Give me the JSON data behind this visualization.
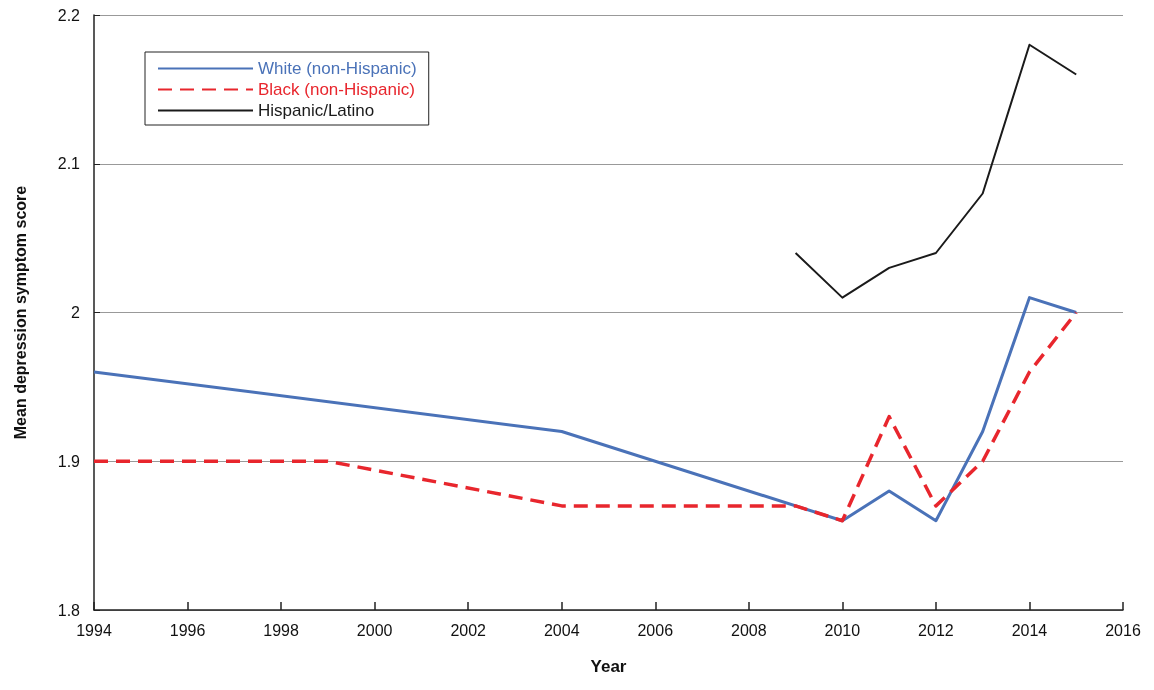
{
  "chart_data": {
    "type": "line",
    "xlabel": "Year",
    "ylabel": "Mean depression symptom score",
    "xlim": [
      1994,
      2016
    ],
    "xticks": [
      1994,
      1996,
      1998,
      2000,
      2002,
      2004,
      2006,
      2008,
      2010,
      2012,
      2014,
      2016
    ],
    "ylim": [
      1.8,
      2.2
    ],
    "yticks": [
      1.8,
      1.9,
      2.0,
      2.1,
      2.2
    ],
    "grid": "y",
    "legend": "top left",
    "marker": "none",
    "series": [
      {
        "name": "White (non-Hispanic)",
        "color": "#4a72b8",
        "line_style": "solid",
        "x": [
          1994,
          2004,
          2010,
          2011,
          2012,
          2013,
          2014,
          2015
        ],
        "values": [
          1.96,
          1.92,
          1.86,
          1.88,
          1.86,
          1.92,
          2.01,
          2.0
        ]
      },
      {
        "name": "Black (non-Hispanic)",
        "color": "#e8262d",
        "line_style": "dashed",
        "x": [
          1994,
          1999,
          2004,
          2009,
          2010,
          2011,
          2012,
          2013,
          2014,
          2015
        ],
        "values": [
          1.9,
          1.9,
          1.87,
          1.87,
          1.86,
          1.93,
          1.87,
          1.9,
          1.96,
          2.0
        ]
      },
      {
        "name": "Hispanic/Latino",
        "color": "#1a1a1a",
        "line_style": "solid",
        "x": [
          2009,
          2010,
          2011,
          2012,
          2013,
          2014,
          2015
        ],
        "values": [
          2.04,
          2.01,
          2.03,
          2.04,
          2.08,
          2.18,
          2.16
        ]
      }
    ]
  }
}
